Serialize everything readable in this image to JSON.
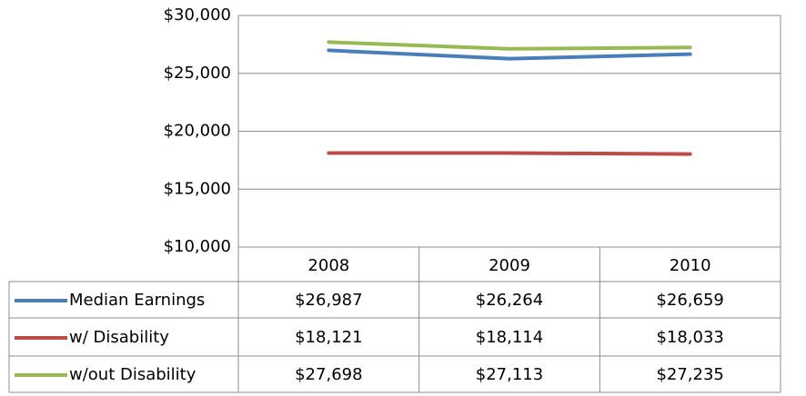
{
  "chart_data": {
    "type": "line",
    "categories": [
      "2008",
      "2009",
      "2010"
    ],
    "series": [
      {
        "name": "Median Earnings",
        "color": "#4a7ebb",
        "values": [
          26987,
          26264,
          26659
        ],
        "value_labels": [
          "$26,987",
          "$26,264",
          "$26,659"
        ]
      },
      {
        "name": "w/ Disability",
        "color": "#be4b48",
        "values": [
          18121,
          18114,
          18033
        ],
        "value_labels": [
          "$18,121",
          "$18,114",
          "$18,033"
        ]
      },
      {
        "name": "w/out Disability",
        "color": "#98b954",
        "values": [
          27698,
          27113,
          27235
        ],
        "value_labels": [
          "$27,698",
          "$27,113",
          "$27,235"
        ]
      }
    ],
    "ylim": [
      10000,
      30000
    ],
    "yticks": [
      {
        "value": 10000,
        "label": "$10,000"
      },
      {
        "value": 15000,
        "label": "$15,000"
      },
      {
        "value": 20000,
        "label": "$20,000"
      },
      {
        "value": 25000,
        "label": "$25,000"
      },
      {
        "value": 30000,
        "label": "$30,000"
      }
    ],
    "grid": true
  }
}
